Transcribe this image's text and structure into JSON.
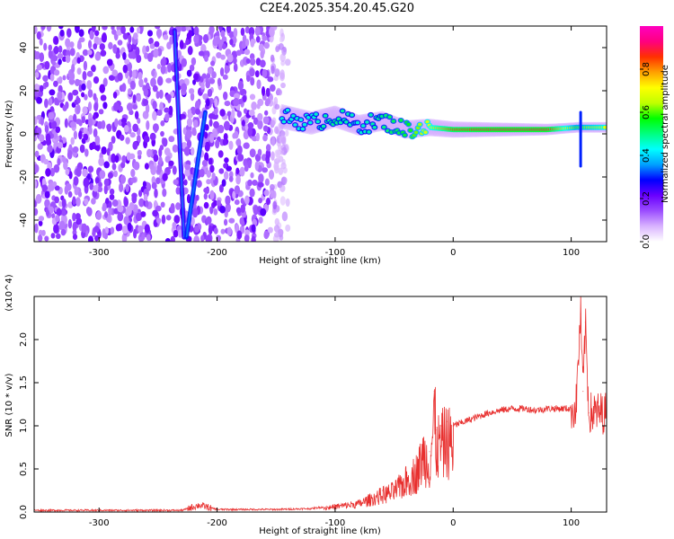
{
  "figure": {
    "title": "C2E4.2025.354.20.45.G20"
  },
  "chart_data": [
    {
      "type": "heatmap",
      "title": "",
      "xlabel": "Height of straight line (km)",
      "ylabel": "Frequency (Hz)",
      "xlim": [
        -355,
        130
      ],
      "ylim": [
        -50,
        50
      ],
      "x_ticks": [
        -300,
        -200,
        -100,
        0,
        100
      ],
      "y_ticks": [
        -40,
        -20,
        0,
        20,
        40
      ],
      "colorbar": {
        "label": "Normalized spectral amplitude",
        "range": [
          0,
          1
        ],
        "ticks": [
          0.0,
          0.2,
          0.4,
          0.6,
          0.8
        ],
        "colors": [
          "#ffffff",
          "#d9b3ff",
          "#9b4dff",
          "#6a00ff",
          "#0000ff",
          "#00a0ff",
          "#00ffff",
          "#00ff80",
          "#00ff00",
          "#c0ff00",
          "#ffff00",
          "#ffa000",
          "#ff3000",
          "#ff0080",
          "#ff00c0"
        ]
      },
      "features": [
        {
          "name": "noise-field",
          "x_range": [
            -355,
            -140
          ],
          "freq_range": [
            -50,
            50
          ],
          "amplitude": 0.15
        },
        {
          "name": "streak-left",
          "x": [
            -236,
            -228
          ],
          "freq": [
            48,
            -48
          ],
          "amplitude": 0.25
        },
        {
          "name": "streak-right",
          "x": [
            -226,
            -210
          ],
          "freq": [
            -48,
            10
          ],
          "amplitude": 0.3
        },
        {
          "name": "ridge",
          "x": [
            -145,
            -120,
            -100,
            -80,
            -60,
            -40,
            -20,
            0,
            40,
            80,
            105,
            130
          ],
          "freq": [
            8,
            5,
            8,
            4,
            6,
            2,
            3,
            2,
            2,
            2,
            3,
            3
          ],
          "amplitude": [
            0.45,
            0.45,
            0.5,
            0.45,
            0.5,
            0.55,
            0.7,
            0.85,
            0.9,
            0.9,
            0.6,
            0.7
          ]
        },
        {
          "name": "spike",
          "x": [
            108,
            108
          ],
          "freq": [
            -15,
            10
          ],
          "amplitude": 0.3
        }
      ]
    },
    {
      "type": "line",
      "title": "",
      "xlabel": "Height of straight line (km)",
      "ylabel": "SNR (10 * v/v)",
      "y_multiplier": "(x10^4)",
      "xlim": [
        -355,
        130
      ],
      "ylim": [
        0,
        2.5
      ],
      "x_ticks": [
        -300,
        -200,
        -100,
        0,
        100
      ],
      "y_ticks": [
        0.0,
        0.5,
        1.0,
        1.5,
        2.0
      ],
      "series": [
        {
          "name": "SNR",
          "color": "#e8302f",
          "x": [
            -355,
            -300,
            -250,
            -230,
            -215,
            -200,
            -150,
            -120,
            -100,
            -80,
            -60,
            -50,
            -40,
            -30,
            -25,
            -20,
            -16,
            -14,
            -10,
            -5,
            0,
            10,
            20,
            30,
            40,
            50,
            60,
            70,
            80,
            90,
            100,
            104,
            108,
            110,
            112,
            115,
            120,
            130
          ],
          "values": [
            0.02,
            0.02,
            0.02,
            0.02,
            0.08,
            0.03,
            0.03,
            0.04,
            0.08,
            0.12,
            0.25,
            0.3,
            0.45,
            0.6,
            0.85,
            0.7,
            1.4,
            0.95,
            1.0,
            1.05,
            1.0,
            1.05,
            1.1,
            1.15,
            1.18,
            1.2,
            1.2,
            1.18,
            1.2,
            1.2,
            1.2,
            1.2,
            2.3,
            1.4,
            2.2,
            1.15,
            1.15,
            1.15
          ]
        }
      ]
    }
  ]
}
